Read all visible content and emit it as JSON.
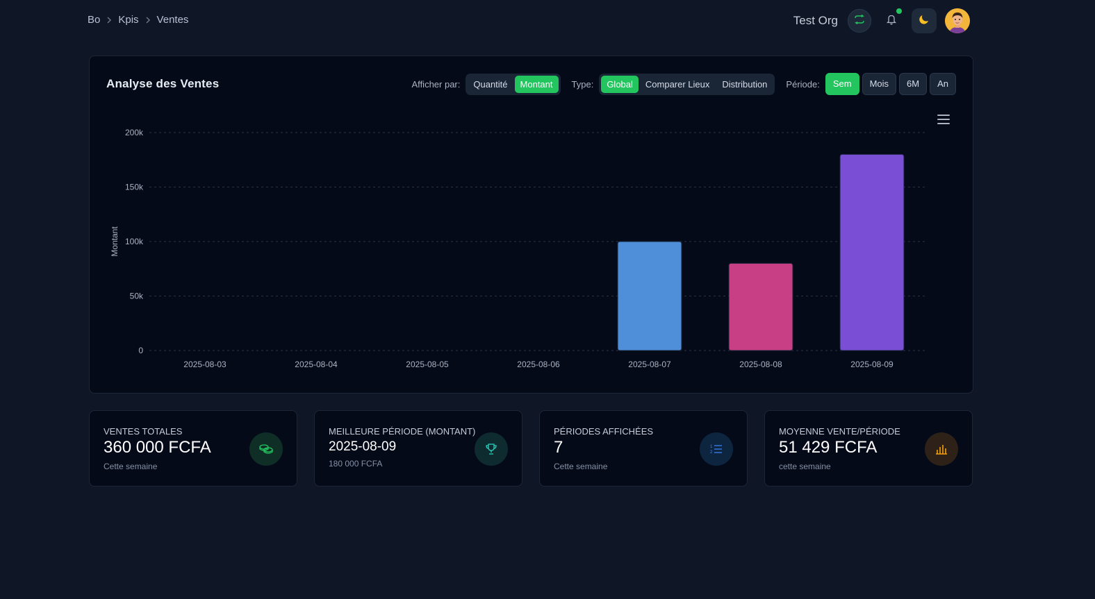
{
  "breadcrumb": [
    "Bo",
    "Kpis",
    "Ventes"
  ],
  "header": {
    "org_name": "Test Org",
    "icons": [
      "sync-icon",
      "bell-icon",
      "moon-icon",
      "avatar"
    ],
    "notification_dot_color": "#22c55e"
  },
  "card": {
    "title": "Analyse des Ventes",
    "display_by": {
      "label": "Afficher par:",
      "options": [
        "Quantité",
        "Montant"
      ],
      "selected": "Montant"
    },
    "type": {
      "label": "Type:",
      "options": [
        "Global",
        "Comparer Lieux",
        "Distribution"
      ],
      "selected": "Global"
    },
    "period": {
      "label": "Période:",
      "options": [
        "Sem",
        "Mois",
        "6M",
        "An"
      ],
      "selected": "Sem"
    }
  },
  "chart_data": {
    "type": "bar",
    "title": "",
    "xlabel": "",
    "ylabel": "Montant",
    "categories": [
      "2025-08-03",
      "2025-08-04",
      "2025-08-05",
      "2025-08-06",
      "2025-08-07",
      "2025-08-08",
      "2025-08-09"
    ],
    "values": [
      0,
      0,
      0,
      0,
      100000,
      80000,
      180000
    ],
    "bar_colors": [
      "#4f8fd9",
      "#4f8fd9",
      "#4f8fd9",
      "#4f8fd9",
      "#4f8fd9",
      "#c93f86",
      "#7a4fd6"
    ],
    "ylim": [
      0,
      200000
    ],
    "yticks": [
      0,
      50000,
      100000,
      150000,
      200000
    ],
    "ytick_labels": [
      "0",
      "50k",
      "100k",
      "150k",
      "200k"
    ],
    "grid": true,
    "legend": "none"
  },
  "stats": [
    {
      "label": "VENTES TOTALES",
      "value": "360 000 FCFA",
      "sub": "Cette semaine",
      "icon": "coins-icon",
      "icon_color": "#22c55e",
      "icon_bg": "#0f2e26"
    },
    {
      "label": "MEILLEURE PÉRIODE (MONTANT)",
      "value": "2025-08-09",
      "sub": "180 000 FCFA",
      "icon": "trophy-icon",
      "icon_color": "#2dd4bf",
      "icon_bg": "#0e2b30"
    },
    {
      "label": "PÉRIODES AFFICHÉES",
      "value": "7",
      "sub": "Cette semaine",
      "icon": "numbered-list-icon",
      "icon_color": "#3b82f6",
      "icon_bg": "#0e2540"
    },
    {
      "label": "MOYENNE VENTE/PÉRIODE",
      "value": "51 429 FCFA",
      "sub": "cette semaine",
      "icon": "bar-chart-icon",
      "icon_color": "#f59e0b",
      "icon_bg": "#2e2218"
    }
  ]
}
